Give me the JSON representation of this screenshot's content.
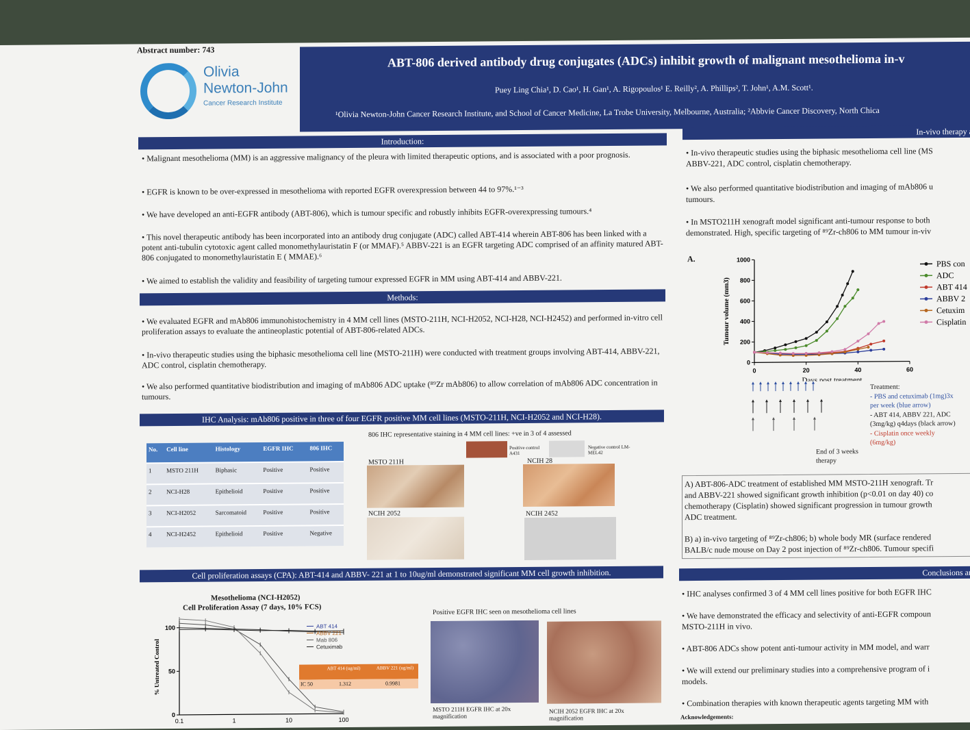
{
  "abstract_number": "Abstract number: 743",
  "logo": {
    "line1": "Olivia",
    "line2": "Newton-John",
    "line3": "Cancer Research Institute"
  },
  "title": "ABT-806 derived antibody drug conjugates (ADCs) inhibit growth of malignant mesothelioma in-v",
  "authors": "Puey Ling Chia¹, D. Cao¹, H. Gan¹, A. Rigopoulos¹ E. Reilly², A. Phillips², T. John¹, A.M. Scott¹.",
  "affiliations": "¹Olivia Newton-John Cancer Research Institute, and School of Cancer Medicine, La Trobe University, Melbourne, Australia; ²Abbvie Cancer Discovery, North Chica",
  "introduction": {
    "heading": "Introduction:",
    "bullets": [
      "• Malignant mesothelioma (MM) is an aggressive malignancy of the pleura with limited therapeutic options, and is associated with a poor prognosis.",
      "• EGFR is known to be over-expressed in mesothelioma with reported EGFR overexpression between 44 to 97%.¹⁻³",
      "• We have developed an anti-EGFR antibody (ABT-806), which is tumour specific and robustly inhibits EGFR-overexpressing tumours.⁴",
      "• This novel therapeutic antibody has been incorporated into an antibody drug conjugate (ADC) called ABT-414 wherein ABT-806 has been linked with a potent anti-tubulin cytotoxic agent called monomethylauristatin F (or MMAF).⁵ ABBV-221 is an EGFR targeting ADC comprised of an affinity matured ABT-806 conjugated to monomethylauristatin E ( MMAE).⁶",
      "• We aimed to establish the validity and feasibility of targeting tumour expressed EGFR in MM using ABT-414 and ABBV-221."
    ]
  },
  "methods": {
    "heading": "Methods:",
    "bullets": [
      "• We evaluated EGFR and mAb806 immunohistochemistry in 4 MM cell lines (MSTO-211H, NCI-H2052, NCI-H28, NCI-H2452) and performed in-vitro cell proliferation assays to evaluate the antineoplastic potential of ABT-806-related ADCs.",
      "• In-vivo therapeutic studies using the biphasic mesothelioma cell line (MSTO-211H) were conducted with treatment groups involving ABT-414, ABBV-221, ADC control, cisplatin chemotherapy.",
      "• We also performed quantitative biodistribution and imaging of mAb806 ADC uptake (⁸⁹Zr mAb806) to allow correlation of mAb806 ADC concentration in tumours."
    ]
  },
  "ihc": {
    "heading": "IHC Analysis: mAb806 positive in three of four EGFR positive MM cell lines (MSTO-211H, NCI-H2052 and NCI-H28).",
    "columns": [
      "No.",
      "Cell line",
      "Histology",
      "EGFR IHC",
      "806 IHC"
    ],
    "rows": [
      [
        "1",
        "MSTO 211H",
        "Biphasic",
        "Positive",
        "Positive"
      ],
      [
        "2",
        "NCI-H28",
        "Epithelioid",
        "Positive",
        "Positive"
      ],
      [
        "3",
        "NCI-H2052",
        "Sarcomatoid",
        "Positive",
        "Positive"
      ],
      [
        "4",
        "NCI-H2452",
        "Epithelioid",
        "Positive",
        "Negative"
      ]
    ],
    "staining_caption": "806 IHC representative staining in 4 MM cell lines: +ve in 3 of 4 assessed",
    "positive_control": "Positive control A431",
    "negative_control": "Negative control LM-MEL42",
    "labels": [
      "MSTO 211H",
      "NCIH 28",
      "NCIH 2052",
      "NCIH 2452"
    ]
  },
  "cpa": {
    "heading": "Cell proliferation assays (CPA): ABT-414 and ABBV- 221 at 1 to 10ug/ml demonstrated significant MM cell growth inhibition.",
    "chart_title_1": "Mesothelioma (NCI-H2052)",
    "chart_title_2": "Cell Proliferation Assay (7 days, 10% FCS)",
    "ylabel": "% Untreated Control",
    "yticks": [
      "100",
      "50",
      "0"
    ],
    "xticks": [
      "0.1",
      "1",
      "10",
      "100"
    ],
    "legend": [
      "ABT 414",
      "ABBV 221",
      "Mab 806",
      "Cetuximab"
    ],
    "ic_table": {
      "h1": "ABT 414 (ug/ml)",
      "h2": "ABBV 221 (ug/ml)",
      "row_label": "IC 50",
      "v1": "1.312",
      "v2": "0.9981"
    },
    "egfr_caption": "Positive EGFR IHC seen on mesothelioma cell lines",
    "egfr_cap1": "MSTO 211H EGFR IHC  at 20x magnification",
    "egfr_cap2": "NCIH 2052 EGFR IHC  at 20x magnification"
  },
  "invivo": {
    "heading": "In-vivo therapy an",
    "bullets": [
      "• In-vivo therapeutic studies using the biphasic mesothelioma cell line (MS",
      "ABBV-221, ADC control, cisplatin chemotherapy.",
      "• We also performed quantitative biodistribution and imaging of mAb806 u",
      "tumours.",
      "• In MSTO211H xenograft model significant anti-tumour response to both",
      "demonstrated. High, specific targeting of ⁸⁹Zr-ch806 to MM tumour in-viv"
    ],
    "panel_label": "A.",
    "treatment": [
      "Treatment:",
      "- PBS and cetuximab (1mg)3x",
      "per week (blue arrow)",
      "- ABT 414, ABBV 221, ADC",
      "(3mg/kg) q4days (black arrow)",
      "- Cisplatin once weekly",
      "(6mg/kg)"
    ],
    "end_note": [
      "End of 3 weeks",
      "therapy"
    ],
    "box_text": [
      "A) ABT-806-ADC treatment of established MM MSTO-211H xenograft. Tr",
      "and ABBV-221 showed significant growth inhibition (p<0.01 on day 40) co",
      "chemotherapy (Cisplatin) showed significant progression in tumour growth",
      "ADC treatment.",
      "",
      "B) a) in-vivo targeting of ⁸⁹Zr-ch806; b) whole body MR (surface rendered",
      "BALB/c nude mouse on Day 2 post injection of ⁸⁹Zr-ch806. Tumour specifi"
    ]
  },
  "conclusions": {
    "heading": "Conclusions and",
    "bullets": [
      "•   IHC analyses confirmed 3 of 4 MM cell lines positive for both EGFR IHC",
      "•   We have demonstrated the efficacy and selectivity of anti-EGFR compoun",
      "     MSTO-211H in vivo.",
      "•   ABT-806 ADCs show potent anti-tumour activity in MM model, and warr",
      "•   We will extend our preliminary studies into a comprehensive program of i",
      "     models.",
      "•   Combination therapies with known therapeutic agents targeting MM with"
    ],
    "acknowledgements": "Acknowledgements:"
  },
  "chart_data": [
    {
      "type": "line",
      "xlabel": "Days post treatment",
      "ylabel": "Tumour volume (mm3)",
      "xlim": [
        0,
        60
      ],
      "ylim": [
        0,
        1000
      ],
      "xticks": [
        0,
        20,
        40,
        60
      ],
      "yticks": [
        0,
        200,
        400,
        600,
        800,
        1000
      ],
      "legend_position": "right",
      "series": [
        {
          "name": "PBS con",
          "color": "#111111",
          "x": [
            0,
            4,
            8,
            12,
            16,
            20,
            24,
            28,
            32,
            34,
            36,
            38
          ],
          "y": [
            100,
            115,
            140,
            170,
            200,
            230,
            290,
            390,
            540,
            650,
            760,
            880
          ]
        },
        {
          "name": "ADC",
          "color": "#4a8a2a",
          "x": [
            0,
            4,
            8,
            12,
            16,
            20,
            24,
            28,
            32,
            35,
            38,
            40
          ],
          "y": [
            100,
            105,
            115,
            125,
            140,
            160,
            210,
            300,
            420,
            540,
            620,
            700
          ]
        },
        {
          "name": "ABT 414",
          "color": "#c0392b",
          "x": [
            0,
            5,
            10,
            15,
            20,
            25,
            30,
            35,
            40,
            45,
            50
          ],
          "y": [
            100,
            90,
            85,
            80,
            80,
            85,
            90,
            100,
            130,
            170,
            200
          ]
        },
        {
          "name": "ABBV 2",
          "color": "#2c3e9a",
          "x": [
            0,
            5,
            10,
            15,
            20,
            25,
            30,
            35,
            40,
            45,
            50
          ],
          "y": [
            100,
            90,
            80,
            75,
            75,
            75,
            80,
            85,
            95,
            110,
            120
          ]
        },
        {
          "name": "Cetuxim",
          "color": "#b5651d",
          "x": [
            0,
            5,
            10,
            15,
            20,
            25,
            30,
            35,
            40,
            44
          ],
          "y": [
            100,
            85,
            70,
            65,
            65,
            70,
            80,
            95,
            120,
            140
          ]
        },
        {
          "name": "Cisplatin",
          "color": "#d07aa8",
          "x": [
            0,
            5,
            10,
            15,
            20,
            25,
            30,
            35,
            40,
            44,
            48,
            50
          ],
          "y": [
            100,
            95,
            90,
            85,
            85,
            90,
            100,
            120,
            200,
            270,
            370,
            390
          ]
        }
      ]
    },
    {
      "type": "line",
      "title": "Mesothelioma (NCI-H2052) Cell Proliferation Assay (7 days, 10% FCS)",
      "ylabel": "% Untreated Control",
      "x_scale": "log",
      "xlim": [
        0.1,
        100
      ],
      "ylim": [
        0,
        110
      ],
      "series": [
        {
          "name": "ABT 414",
          "color": "#555555",
          "x": [
            0.1,
            0.3,
            1,
            3,
            10,
            30,
            100
          ],
          "y": [
            105,
            103,
            98,
            80,
            40,
            8,
            2
          ]
        },
        {
          "name": "ABBV 221",
          "color": "#777777",
          "x": [
            0.1,
            0.3,
            1,
            3,
            10,
            30,
            100
          ],
          "y": [
            110,
            108,
            100,
            70,
            25,
            4,
            1
          ]
        },
        {
          "name": "Mab 806",
          "color": "#333333",
          "x": [
            0.1,
            0.3,
            1,
            3,
            10,
            30,
            100
          ],
          "y": [
            100,
            99,
            98,
            97,
            95,
            94,
            93
          ]
        },
        {
          "name": "Cetuximab",
          "color": "#222222",
          "x": [
            0.1,
            0.3,
            1,
            3,
            10,
            30,
            100
          ],
          "y": [
            98,
            98,
            97,
            96,
            96,
            95,
            95
          ]
        }
      ]
    }
  ]
}
